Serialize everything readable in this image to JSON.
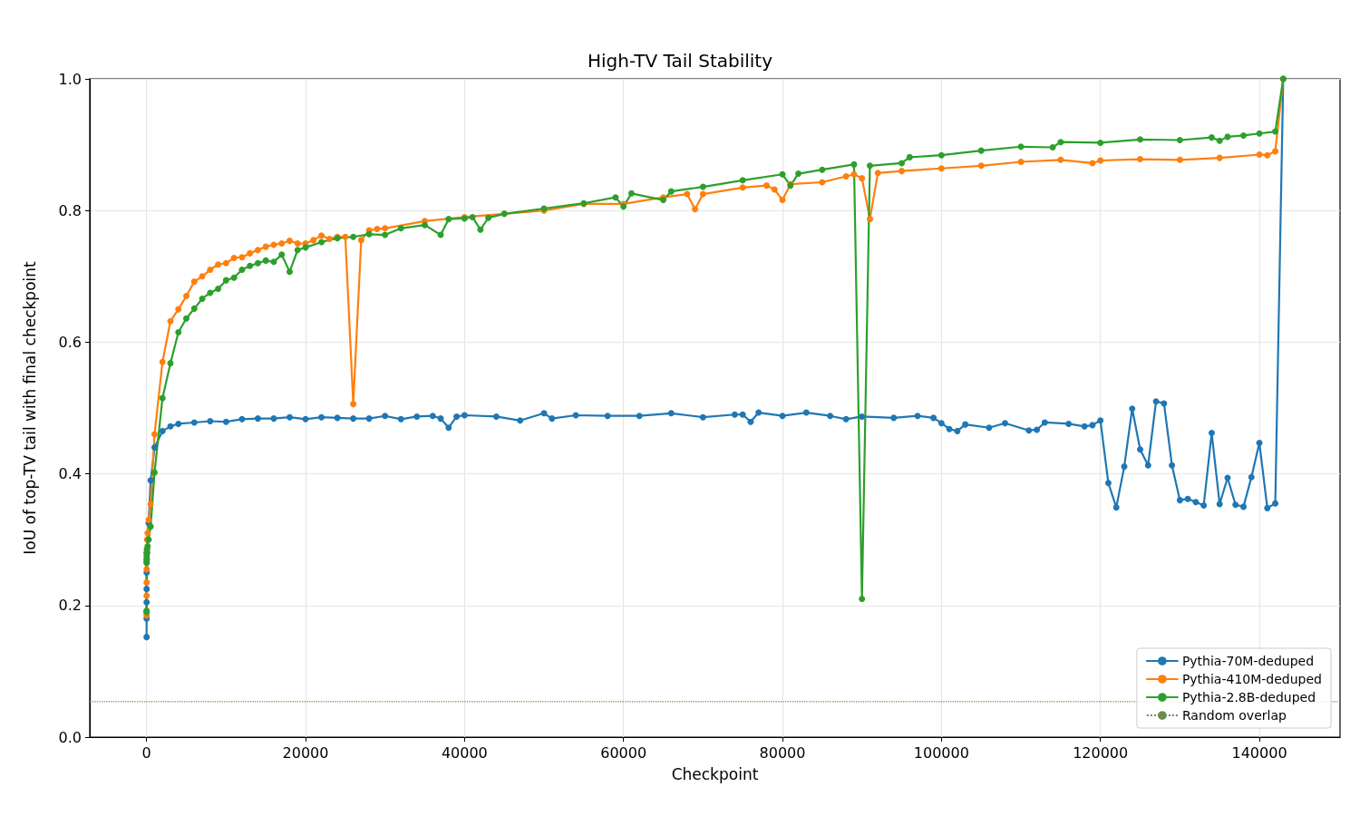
{
  "chart_data": {
    "type": "line",
    "title": "High-TV Tail Stability",
    "xlabel": "Checkpoint",
    "ylabel": "IoU of top-TV tail with final checkpoint",
    "xlim": [
      -7150,
      150150
    ],
    "ylim": [
      0,
      1
    ],
    "xticks": [
      0,
      20000,
      40000,
      60000,
      80000,
      100000,
      120000,
      140000
    ],
    "yticks": [
      {
        "value": 0,
        "label": "0.0"
      },
      {
        "value": 0.2,
        "label": "0.2"
      },
      {
        "value": 0.4,
        "label": "0.4"
      },
      {
        "value": 0.6,
        "label": "0.6"
      },
      {
        "value": 0.8,
        "label": "0.8"
      },
      {
        "value": 1,
        "label": "1.0"
      }
    ],
    "grid": true,
    "legend": "bottom right",
    "marker": "circle",
    "line_style": "solid",
    "ref_lines": [
      {
        "axis": "y",
        "value": 0.054,
        "label": "Random overlap",
        "color": "#6b8e4e",
        "line_style": "dotted"
      }
    ],
    "series": [
      {
        "name": "Pythia-70M-deduped",
        "color": "#1f77b4",
        "x": [
          0,
          1,
          2,
          4,
          8,
          16,
          32,
          64,
          128,
          256,
          512,
          1000,
          2000,
          3000,
          4000,
          6000,
          8000,
          10000,
          12000,
          14000,
          16000,
          18000,
          20000,
          22000,
          24000,
          26000,
          28000,
          30000,
          32000,
          34000,
          36000,
          37000,
          38000,
          39000,
          40000,
          44000,
          47000,
          50000,
          51000,
          54000,
          58000,
          62000,
          66000,
          70000,
          74000,
          75000,
          76000,
          77000,
          80000,
          83000,
          86000,
          88000,
          90000,
          94000,
          97000,
          99000,
          100000,
          101000,
          102000,
          103000,
          106000,
          108000,
          111000,
          112000,
          113000,
          116000,
          118000,
          119000,
          120000,
          121000,
          122000,
          123000,
          124000,
          125000,
          126000,
          127000,
          128000,
          129000,
          130000,
          131000,
          132000,
          133000,
          134000,
          135000,
          136000,
          137000,
          138000,
          139000,
          140000,
          141000,
          142000,
          143000
        ],
        "values": [
          0.152,
          0.18,
          0.205,
          0.225,
          0.25,
          0.265,
          0.27,
          0.28,
          0.3,
          0.325,
          0.39,
          0.44,
          0.465,
          0.472,
          0.476,
          0.478,
          0.48,
          0.479,
          0.483,
          0.484,
          0.484,
          0.486,
          0.483,
          0.486,
          0.485,
          0.484,
          0.484,
          0.488,
          0.483,
          0.487,
          0.488,
          0.484,
          0.47,
          0.487,
          0.489,
          0.487,
          0.481,
          0.492,
          0.484,
          0.489,
          0.488,
          0.488,
          0.492,
          0.486,
          0.49,
          0.49,
          0.479,
          0.493,
          0.488,
          0.493,
          0.488,
          0.483,
          0.487,
          0.485,
          0.488,
          0.485,
          0.477,
          0.468,
          0.465,
          0.475,
          0.47,
          0.477,
          0.466,
          0.467,
          0.478,
          0.476,
          0.472,
          0.474,
          0.481,
          0.386,
          0.349,
          0.411,
          0.499,
          0.437,
          0.413,
          0.51,
          0.507,
          0.413,
          0.36,
          0.362,
          0.357,
          0.352,
          0.462,
          0.354,
          0.394,
          0.353,
          0.35,
          0.395,
          0.447,
          0.348,
          0.355,
          1.0
        ]
      },
      {
        "name": "Pythia-410M-deduped",
        "color": "#ff7f0e",
        "x": [
          0,
          1,
          2,
          4,
          8,
          16,
          32,
          64,
          128,
          256,
          512,
          1000,
          2000,
          3000,
          4000,
          5000,
          6000,
          7000,
          8000,
          9000,
          10000,
          11000,
          12000,
          13000,
          14000,
          15000,
          16000,
          17000,
          18000,
          19000,
          20000,
          21000,
          22000,
          23000,
          24000,
          25000,
          26000,
          27000,
          28000,
          29000,
          30000,
          35000,
          40000,
          45000,
          50000,
          55000,
          60000,
          65000,
          68000,
          69000,
          70000,
          75000,
          78000,
          79000,
          80000,
          81000,
          85000,
          88000,
          89000,
          90000,
          91000,
          92000,
          95000,
          100000,
          105000,
          110000,
          115000,
          119000,
          120000,
          125000,
          130000,
          135000,
          140000,
          141000,
          142000,
          143000
        ],
        "values": [
          0.185,
          0.19,
          0.215,
          0.235,
          0.255,
          0.28,
          0.285,
          0.3,
          0.31,
          0.33,
          0.354,
          0.46,
          0.57,
          0.632,
          0.65,
          0.67,
          0.692,
          0.7,
          0.71,
          0.718,
          0.72,
          0.728,
          0.729,
          0.735,
          0.74,
          0.745,
          0.748,
          0.75,
          0.754,
          0.75,
          0.75,
          0.755,
          0.762,
          0.757,
          0.76,
          0.76,
          0.506,
          0.755,
          0.77,
          0.772,
          0.773,
          0.784,
          0.79,
          0.795,
          0.8,
          0.81,
          0.81,
          0.82,
          0.825,
          0.802,
          0.825,
          0.835,
          0.838,
          0.832,
          0.816,
          0.84,
          0.843,
          0.852,
          0.855,
          0.849,
          0.787,
          0.857,
          0.86,
          0.864,
          0.868,
          0.874,
          0.877,
          0.872,
          0.876,
          0.878,
          0.877,
          0.88,
          0.885,
          0.884,
          0.89,
          1.0
        ]
      },
      {
        "name": "Pythia-2.8B-deduped",
        "color": "#2ca02c",
        "x": [
          0,
          1,
          2,
          4,
          8,
          16,
          32,
          64,
          128,
          256,
          512,
          1000,
          2000,
          3000,
          4000,
          5000,
          6000,
          7000,
          8000,
          9000,
          10000,
          11000,
          12000,
          13000,
          14000,
          15000,
          16000,
          17000,
          18000,
          19000,
          20000,
          22000,
          24000,
          26000,
          28000,
          30000,
          32000,
          35000,
          37000,
          38000,
          40000,
          41000,
          42000,
          43000,
          45000,
          50000,
          55000,
          59000,
          60000,
          61000,
          65000,
          66000,
          70000,
          75000,
          80000,
          81000,
          82000,
          85000,
          89000,
          90000,
          91000,
          95000,
          96000,
          100000,
          105000,
          110000,
          114000,
          115000,
          120000,
          125000,
          130000,
          134000,
          135000,
          136000,
          138000,
          140000,
          142000,
          143000
        ],
        "values": [
          0.19,
          0.192,
          0.265,
          0.27,
          0.275,
          0.28,
          0.28,
          0.285,
          0.29,
          0.3,
          0.32,
          0.402,
          0.515,
          0.568,
          0.615,
          0.636,
          0.651,
          0.666,
          0.675,
          0.681,
          0.694,
          0.698,
          0.71,
          0.716,
          0.72,
          0.724,
          0.722,
          0.733,
          0.707,
          0.74,
          0.744,
          0.752,
          0.758,
          0.76,
          0.764,
          0.763,
          0.773,
          0.778,
          0.763,
          0.787,
          0.788,
          0.79,
          0.771,
          0.789,
          0.795,
          0.803,
          0.811,
          0.82,
          0.806,
          0.826,
          0.816,
          0.829,
          0.836,
          0.846,
          0.855,
          0.838,
          0.856,
          0.862,
          0.87,
          0.21,
          0.868,
          0.872,
          0.881,
          0.884,
          0.891,
          0.897,
          0.896,
          0.904,
          0.903,
          0.908,
          0.907,
          0.911,
          0.906,
          0.912,
          0.914,
          0.917,
          0.92,
          1.0
        ]
      }
    ]
  }
}
